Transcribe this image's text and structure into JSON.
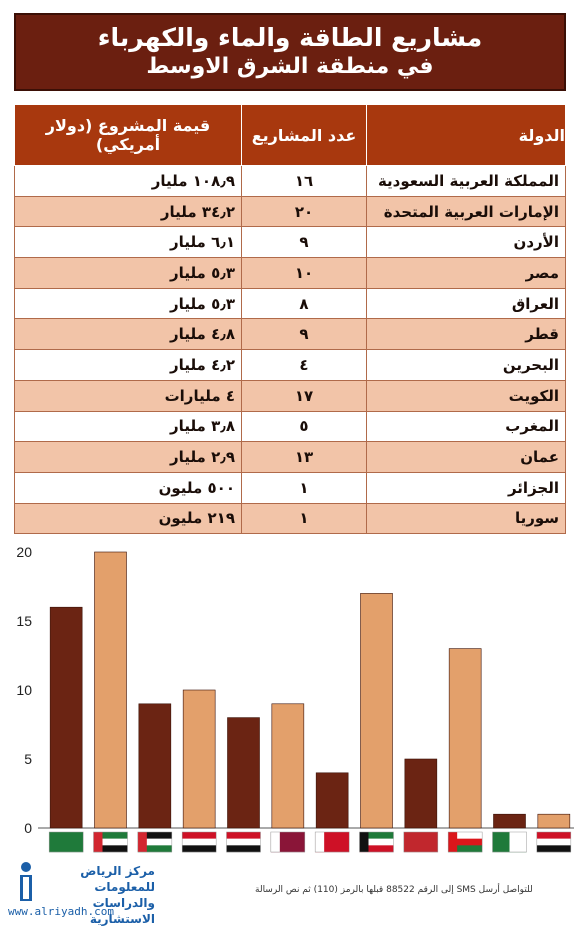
{
  "title": {
    "line1": "مشاريع الطاقة والماء والكهرباء",
    "line2": "في منطقة الشرق الاوسط"
  },
  "table": {
    "headers": {
      "country": "الدولة",
      "count": "عدد المشاريع",
      "value": "قيمة المشروع (دولار أمريكي)"
    },
    "rows": [
      {
        "country": "المملكة العربية السعودية",
        "count": "١٦",
        "value": "١٠٨٫٩ مليار"
      },
      {
        "country": "الإمارات العربية المتحدة",
        "count": "٢٠",
        "value": "٣٤٫٢ مليار"
      },
      {
        "country": "الأردن",
        "count": "٩",
        "value": "٦٫١ مليار"
      },
      {
        "country": "مصر",
        "count": "١٠",
        "value": "٥٫٣ مليار"
      },
      {
        "country": "العراق",
        "count": "٨",
        "value": "٥٫٣ مليار"
      },
      {
        "country": "قطر",
        "count": "٩",
        "value": "٤٫٨ مليار"
      },
      {
        "country": "البحرين",
        "count": "٤",
        "value": "٤٫٢ مليار"
      },
      {
        "country": "الكويت",
        "count": "١٧",
        "value": "٤ مليارات"
      },
      {
        "country": "المغرب",
        "count": "٥",
        "value": "٣٫٨ مليار"
      },
      {
        "country": "عمان",
        "count": "١٣",
        "value": "٢٫٩ مليار"
      },
      {
        "country": "الجزائر",
        "count": "١",
        "value": "٥٠٠ مليون"
      },
      {
        "country": "سوريا",
        "count": "١",
        "value": "٢١٩ مليون"
      }
    ]
  },
  "chart_data": {
    "type": "bar",
    "categories": [
      "Saudi Arabia",
      "UAE",
      "Jordan",
      "Egypt",
      "Iraq",
      "Qatar",
      "Bahrain",
      "Kuwait",
      "Morocco",
      "Oman",
      "Algeria",
      "Syria"
    ],
    "values": [
      16,
      20,
      9,
      10,
      8,
      9,
      4,
      17,
      5,
      13,
      1,
      1
    ],
    "ylim": [
      0,
      20
    ],
    "yticks": [
      0,
      5,
      10,
      15,
      20
    ],
    "title": "",
    "xlabel": "",
    "ylabel": "",
    "grid": false,
    "bar_colors": [
      "#6b2413",
      "#e3a06b"
    ],
    "x_labels_as_flags": true
  },
  "flags": [
    {
      "name": "saudi-arabia-flag-icon",
      "stripes": [
        "#1f7a3a"
      ]
    },
    {
      "name": "uae-flag-icon",
      "stripes": [
        "#1f7a3a",
        "#ffffff",
        "#111111"
      ],
      "hoist": "#d22630"
    },
    {
      "name": "jordan-flag-icon",
      "stripes": [
        "#111111",
        "#ffffff",
        "#1f7a3a"
      ],
      "hoist": "#d22630"
    },
    {
      "name": "egypt-flag-icon",
      "stripes": [
        "#ce1126",
        "#ffffff",
        "#111111"
      ]
    },
    {
      "name": "iraq-flag-icon",
      "stripes": [
        "#ce1126",
        "#ffffff",
        "#111111"
      ]
    },
    {
      "name": "qatar-flag-icon",
      "stripes": [
        "#8a1538"
      ],
      "hoist": "#ffffff"
    },
    {
      "name": "bahrain-flag-icon",
      "stripes": [
        "#ce1126"
      ],
      "hoist": "#ffffff"
    },
    {
      "name": "kuwait-flag-icon",
      "stripes": [
        "#1f7a3a",
        "#ffffff",
        "#ce1126"
      ],
      "hoist": "#111111"
    },
    {
      "name": "morocco-flag-icon",
      "stripes": [
        "#c1272d"
      ]
    },
    {
      "name": "oman-flag-icon",
      "stripes": [
        "#ffffff",
        "#db161b",
        "#1f7a3a"
      ],
      "hoist": "#db161b"
    },
    {
      "name": "algeria-flag-icon",
      "stripes": [
        "#1f7a3a"
      ],
      "right": "#ffffff"
    },
    {
      "name": "syria-flag-icon",
      "stripes": [
        "#ce1126",
        "#ffffff",
        "#111111"
      ]
    }
  ],
  "footer": {
    "logo_line1": "مركز الرياض للمعلومات",
    "logo_line2": "والدراسات الاستشارية",
    "sms": "للتواصل أرسل SMS إلى الرقم 88522 قبلها بالرمز (110) ثم نص الرسالة",
    "url": "www.alriyadh.com"
  }
}
